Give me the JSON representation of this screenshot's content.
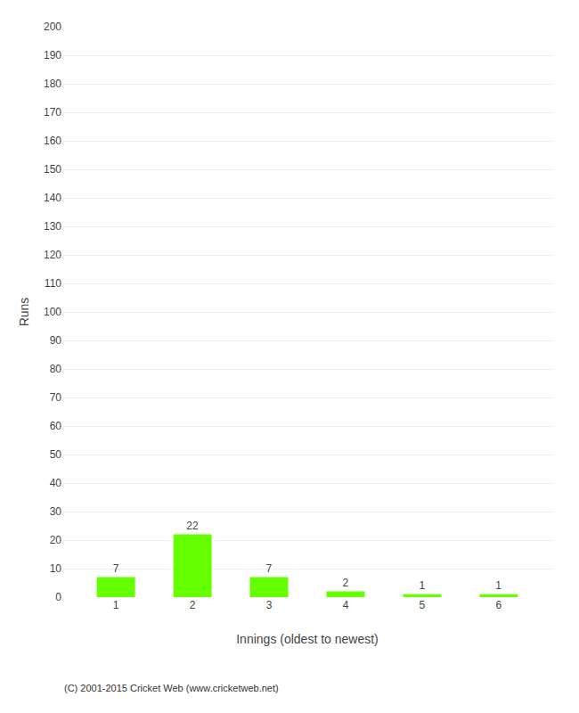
{
  "chart_data": {
    "type": "bar",
    "categories": [
      1,
      2,
      3,
      4,
      5,
      6
    ],
    "values": [
      7,
      22,
      7,
      2,
      1,
      1
    ],
    "color": "#66ff00",
    "xlabel": "Innings (oldest to newest)",
    "ylabel": "Runs",
    "ylim": [
      0,
      200
    ],
    "yticks": [
      0,
      10,
      20,
      30,
      40,
      50,
      60,
      70,
      80,
      90,
      100,
      110,
      120,
      130,
      140,
      150,
      160,
      170,
      180,
      190,
      200
    ],
    "grid": true,
    "data_labels": true,
    "annotation": "(C) 2001-2015 Cricket Web (www.cricketweb.net)"
  }
}
